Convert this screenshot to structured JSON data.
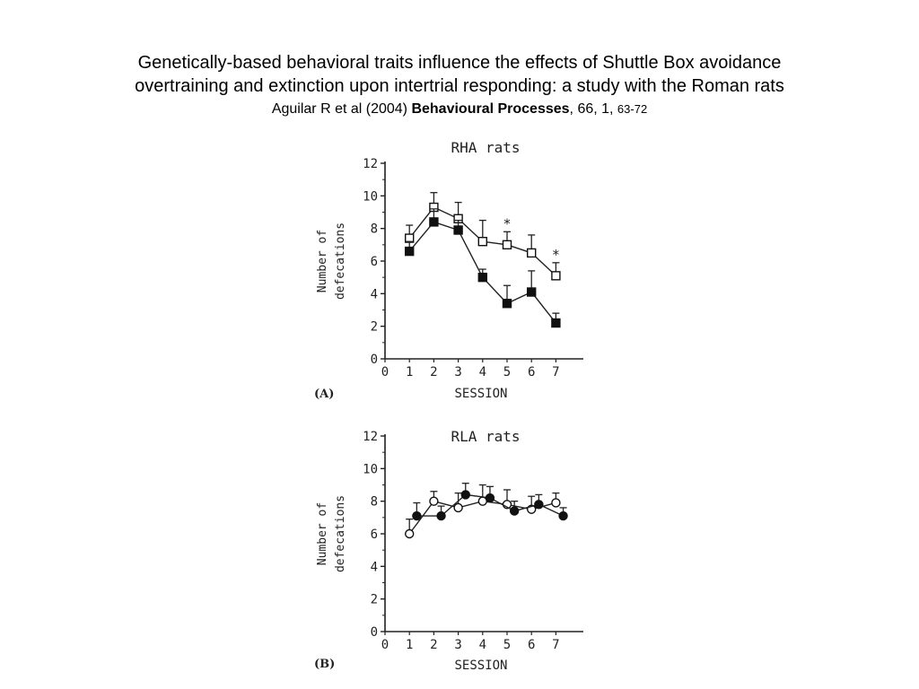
{
  "header": {
    "title_line1": "Genetically-based behavioral traits influence the effects of Shuttle Box avoidance",
    "title_line2": "overtraining and extinction upon intertrial responding: a study with the Roman rats",
    "citation": {
      "authors": "Aguilar R et al (2004) ",
      "journal": "Behavioural Processes",
      "volume_issue": ", 66, 1, ",
      "pages": "63-72"
    }
  },
  "chart_data": [
    {
      "panel": "(A)",
      "type": "line",
      "title": "RHA rats",
      "xlabel": "SESSION",
      "ylabel_line1": "Number of",
      "ylabel_line2": "defecations",
      "xlim": [
        0,
        7
      ],
      "ylim": [
        0,
        12
      ],
      "xticks": [
        0,
        1,
        2,
        3,
        4,
        5,
        6,
        7
      ],
      "yticks": [
        0,
        2,
        4,
        6,
        8,
        10,
        12
      ],
      "significance": [
        {
          "x": 5,
          "label": "*"
        },
        {
          "x": 7,
          "label": "*"
        }
      ],
      "series": [
        {
          "marker": "open-square",
          "x": [
            1,
            2,
            3,
            4,
            5,
            6,
            7
          ],
          "values": [
            7.4,
            9.3,
            8.6,
            7.2,
            7.0,
            6.5,
            5.1
          ],
          "error": [
            0.8,
            0.9,
            1.0,
            1.3,
            0.8,
            1.1,
            0.8
          ]
        },
        {
          "marker": "filled-square",
          "x": [
            1,
            2,
            3,
            4,
            5,
            6,
            7
          ],
          "values": [
            6.6,
            8.4,
            7.9,
            5.0,
            3.4,
            4.1,
            2.2
          ],
          "error": [
            0.6,
            0.8,
            0.6,
            0.5,
            1.1,
            1.3,
            0.6
          ]
        }
      ]
    },
    {
      "panel": "(B)",
      "type": "line",
      "title": "RLA rats",
      "xlabel": "SESSION",
      "ylabel_line1": "Number of",
      "ylabel_line2": "defecations",
      "xlim": [
        0,
        7
      ],
      "ylim": [
        0,
        12
      ],
      "xticks": [
        0,
        1,
        2,
        3,
        4,
        5,
        6,
        7
      ],
      "yticks": [
        0,
        2,
        4,
        6,
        8,
        10,
        12
      ],
      "significance": [],
      "series": [
        {
          "marker": "open-circle",
          "x": [
            1,
            2,
            3,
            4,
            5,
            6,
            7
          ],
          "values": [
            6.0,
            8.0,
            7.6,
            8.0,
            7.8,
            7.5,
            7.9
          ],
          "error": [
            0.9,
            0.6,
            0.9,
            1.0,
            0.9,
            0.8,
            0.6
          ]
        },
        {
          "marker": "filled-circle",
          "x": [
            1.3,
            2.3,
            3.3,
            4.3,
            5.3,
            6.3,
            7.3
          ],
          "values": [
            7.1,
            7.1,
            8.4,
            8.2,
            7.4,
            7.8,
            7.1
          ],
          "error": [
            0.8,
            0.6,
            0.7,
            0.7,
            0.6,
            0.6,
            0.5
          ]
        }
      ]
    }
  ]
}
